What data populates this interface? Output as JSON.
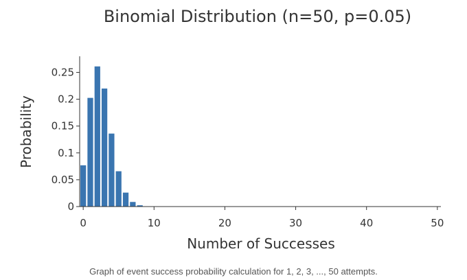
{
  "chart_data": {
    "type": "bar",
    "title": "Binomial Distribution (n=50, p=0.05)",
    "xlabel": "Number of Successes",
    "ylabel": "Probability",
    "xlim": [
      -0.5,
      50.5
    ],
    "ylim": [
      0,
      0.28
    ],
    "xticks": [
      0,
      10,
      20,
      30,
      40,
      50
    ],
    "xtick_labels": [
      "0",
      "10",
      "20",
      "30",
      "40",
      "50"
    ],
    "yticks": [
      0,
      0.05,
      0.1,
      0.15,
      0.2,
      0.25
    ],
    "ytick_labels": [
      "0",
      "0.05",
      "0.1",
      "0.15",
      "0.2",
      "0.25"
    ],
    "bar_color": "#3a75b0",
    "grid": false,
    "x": [
      0,
      1,
      2,
      3,
      4,
      5,
      6,
      7,
      8,
      9,
      10,
      11,
      12,
      13,
      14,
      15,
      16,
      17,
      18,
      19,
      20,
      21,
      22,
      23,
      24,
      25,
      26,
      27,
      28,
      29,
      30,
      31,
      32,
      33,
      34,
      35,
      36,
      37,
      38,
      39,
      40,
      41,
      42,
      43,
      44,
      45,
      46,
      47,
      48,
      49,
      50
    ],
    "values": [
      0.0769,
      0.2025,
      0.2611,
      0.2199,
      0.136,
      0.0658,
      0.026,
      0.0086,
      0.0024,
      0.0006,
      0.0001,
      0,
      0,
      0,
      0,
      0,
      0,
      0,
      0,
      0,
      0,
      0,
      0,
      0,
      0,
      0,
      0,
      0,
      0,
      0,
      0,
      0,
      0,
      0,
      0,
      0,
      0,
      0,
      0,
      0,
      0,
      0,
      0,
      0,
      0,
      0,
      0,
      0,
      0,
      0,
      0
    ]
  },
  "caption": "Graph of event success probability calculation for 1, 2, 3, ..., 50 attempts."
}
